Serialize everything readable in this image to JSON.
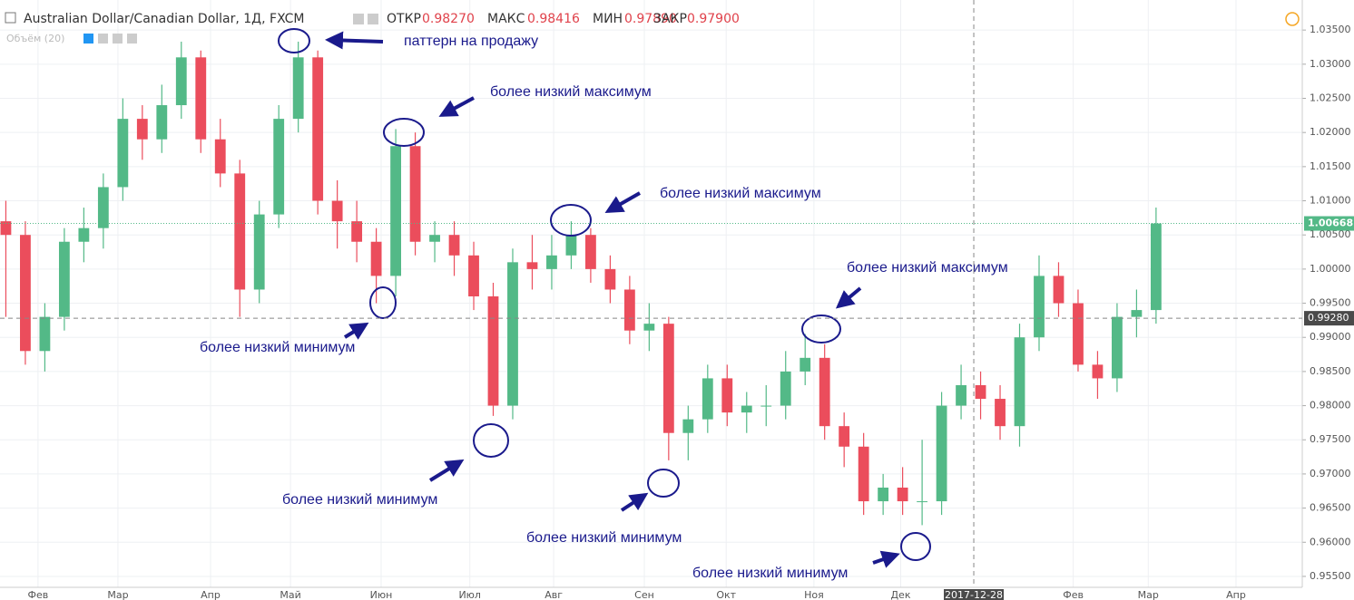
{
  "chart_data": {
    "type": "candlestick",
    "title": "Australian Dollar/Canadian Dollar, 1Д, FXCM",
    "ohlc_labels": [
      "ОТКР",
      "МАКС",
      "МИН",
      "ЗАКР"
    ],
    "ohlc_values": [
      {
        "value": 0.9827,
        "label": "0.98270"
      },
      {
        "value": 0.98416,
        "label": "0.98416"
      },
      {
        "value": 0.9789,
        "label": "0.97890"
      },
      {
        "value": 0.979,
        "label": "0.97900"
      }
    ],
    "volume_label": "Объём (20)",
    "x": [
      0,
      1,
      2,
      3,
      4,
      5,
      6,
      7,
      8,
      9,
      10,
      11,
      12,
      13,
      14,
      15,
      16,
      17,
      18,
      19,
      20,
      21,
      22,
      23,
      24,
      25,
      26,
      27,
      28,
      29,
      30,
      31,
      32,
      33,
      34,
      35,
      36,
      37,
      38,
      39,
      40,
      41,
      42,
      43,
      44,
      45,
      46,
      47,
      48,
      49,
      50,
      51,
      52,
      53,
      54,
      55,
      56,
      57,
      58,
      59
    ],
    "open": [
      1.007,
      1.005,
      0.988,
      0.993,
      1.004,
      1.006,
      1.012,
      1.022,
      1.019,
      1.024,
      1.031,
      1.019,
      1.014,
      0.997,
      1.008,
      1.022,
      1.031,
      1.01,
      1.007,
      1.004,
      0.999,
      1.018,
      1.004,
      1.005,
      1.002,
      0.996,
      0.98,
      1.001,
      1.0,
      1.002,
      1.005,
      1.0,
      0.997,
      0.991,
      0.992,
      0.976,
      0.978,
      0.984,
      0.979,
      0.98,
      0.98,
      0.985,
      0.987,
      0.977,
      0.974,
      0.966,
      0.968,
      0.966,
      0.966,
      0.98,
      0.983,
      0.981,
      0.977,
      0.99,
      0.999,
      0.995,
      0.986,
      0.984,
      0.993,
      0.994
    ],
    "high": [
      1.01,
      1.007,
      0.995,
      1.006,
      1.009,
      1.014,
      1.025,
      1.024,
      1.027,
      1.0333,
      1.032,
      1.022,
      1.016,
      1.01,
      1.024,
      1.0333,
      1.032,
      1.013,
      1.01,
      1.006,
      1.0205,
      1.02,
      1.007,
      1.007,
      1.004,
      0.998,
      1.003,
      1.005,
      1.005,
      1.007,
      1.006,
      1.002,
      0.999,
      0.995,
      0.993,
      0.98,
      0.986,
      0.986,
      0.982,
      0.983,
      0.988,
      0.9905,
      0.989,
      0.979,
      0.976,
      0.97,
      0.971,
      0.975,
      0.982,
      0.986,
      0.985,
      0.983,
      0.992,
      1.002,
      1.001,
      0.997,
      0.988,
      0.995,
      0.997,
      1.009
    ],
    "low": [
      0.993,
      0.986,
      0.985,
      0.991,
      1.001,
      1.003,
      1.01,
      1.016,
      1.017,
      1.022,
      1.017,
      1.012,
      0.993,
      0.995,
      1.006,
      1.02,
      1.008,
      1.003,
      1.001,
      0.995,
      0.996,
      1.002,
      1.001,
      0.999,
      0.994,
      0.9785,
      0.978,
      0.997,
      0.997,
      1.0,
      0.998,
      0.995,
      0.989,
      0.988,
      0.972,
      0.972,
      0.976,
      0.977,
      0.976,
      0.977,
      0.978,
      0.983,
      0.975,
      0.971,
      0.964,
      0.964,
      0.964,
      0.9625,
      0.964,
      0.978,
      0.978,
      0.975,
      0.974,
      0.988,
      0.993,
      0.985,
      0.981,
      0.982,
      0.99,
      0.992
    ],
    "close": [
      1.005,
      0.988,
      0.993,
      1.004,
      1.006,
      1.012,
      1.022,
      1.019,
      1.024,
      1.031,
      1.019,
      1.014,
      0.997,
      1.008,
      1.022,
      1.031,
      1.01,
      1.007,
      1.004,
      0.999,
      1.018,
      1.004,
      1.005,
      1.002,
      0.996,
      0.98,
      1.001,
      1.0,
      1.002,
      1.005,
      1.0,
      0.997,
      0.991,
      0.992,
      0.976,
      0.978,
      0.984,
      0.979,
      0.98,
      0.98,
      0.985,
      0.987,
      0.977,
      0.974,
      0.966,
      0.968,
      0.966,
      0.966,
      0.98,
      0.983,
      0.981,
      0.977,
      0.99,
      0.999,
      0.995,
      0.986,
      0.984,
      0.993,
      0.994,
      1.00668
    ],
    "up_color": "#53b987",
    "down_color": "#eb4d5c",
    "xlim": [
      -0.3,
      66.5
    ],
    "xticks": [
      {
        "value": 1.65,
        "label": "Фев"
      },
      {
        "value": 5.75,
        "label": "Мар"
      },
      {
        "value": 10.5,
        "label": "Апр"
      },
      {
        "value": 14.6,
        "label": "Май"
      },
      {
        "value": 19.25,
        "label": "Июн"
      },
      {
        "value": 23.8,
        "label": "Июл"
      },
      {
        "value": 28.1,
        "label": "Авг"
      },
      {
        "value": 32.75,
        "label": "Сен"
      },
      {
        "value": 36.95,
        "label": "Окт"
      },
      {
        "value": 41.45,
        "label": "Ноя"
      },
      {
        "value": 45.9,
        "label": "Дек"
      },
      {
        "value": 54.75,
        "label": "Фев"
      },
      {
        "value": 58.6,
        "label": "Мар"
      },
      {
        "value": 63.1,
        "label": "Апр"
      }
    ],
    "ylim": [
      0.9534,
      1.0394
    ],
    "yticks": [
      {
        "value": 0.955,
        "label": "0.95500"
      },
      {
        "value": 0.96,
        "label": "0.96000"
      },
      {
        "value": 0.965,
        "label": "0.96500"
      },
      {
        "value": 0.97,
        "label": "0.97000"
      },
      {
        "value": 0.975,
        "label": "0.97500"
      },
      {
        "value": 0.98,
        "label": "0.98000"
      },
      {
        "value": 0.985,
        "label": "0.98500"
      },
      {
        "value": 0.99,
        "label": "0.99000"
      },
      {
        "value": 0.995,
        "label": "0.99500"
      },
      {
        "value": 1.0,
        "label": "1.00000"
      },
      {
        "value": 1.005,
        "label": "1.00500"
      },
      {
        "value": 1.01,
        "label": "1.01000"
      },
      {
        "value": 1.015,
        "label": "1.01500"
      },
      {
        "value": 1.02,
        "label": "1.02000"
      },
      {
        "value": 1.025,
        "label": "1.02500"
      },
      {
        "value": 1.03,
        "label": "1.03000"
      },
      {
        "value": 1.035,
        "label": "1.03500"
      }
    ],
    "grid": true,
    "last_price": {
      "value": 1.00668,
      "label": "1.00668"
    },
    "crosshair_price": {
      "value": 0.9928,
      "label": "0.99280"
    },
    "crosshair_x": {
      "value": 49.65,
      "label": "2017-12-28"
    },
    "annotations": [
      "паттерн на продажу",
      "более низкий максимум",
      "более низкий максимум",
      "более низкий максимум",
      "более низкий минимум",
      "более низкий минимум",
      "более низкий минимум",
      "более низкий минимум"
    ]
  }
}
